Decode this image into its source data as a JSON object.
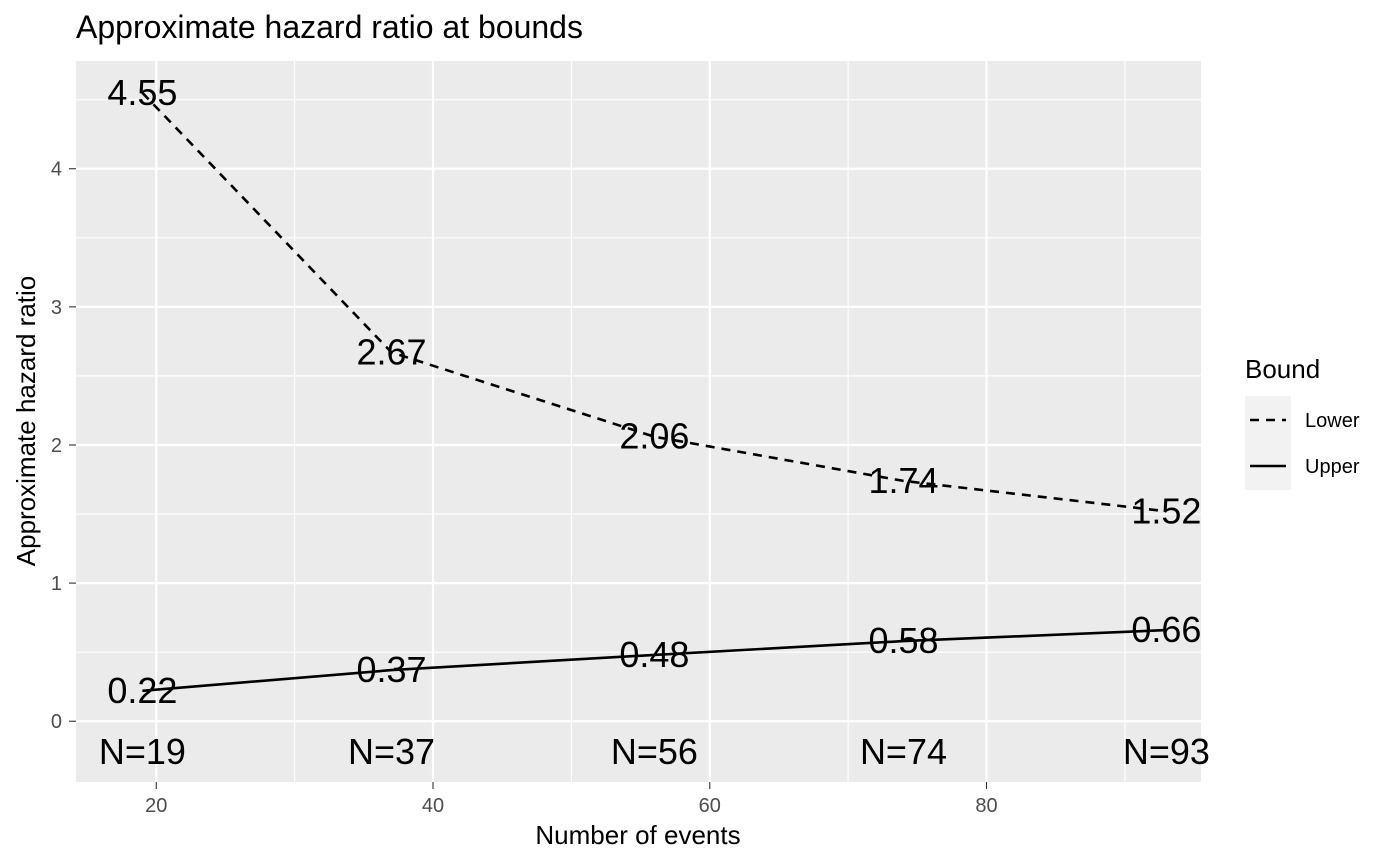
{
  "chart_data": {
    "type": "line",
    "title": "Approximate hazard ratio at bounds",
    "xlabel": "Number of events",
    "ylabel": "Approximate hazard ratio",
    "xlim": [
      14.2,
      95.5
    ],
    "ylim": [
      -0.44,
      4.78
    ],
    "x_ticks": [
      20,
      40,
      60,
      80
    ],
    "y_ticks": [
      0,
      1,
      2,
      3,
      4
    ],
    "grid": true,
    "x": [
      19,
      37,
      56,
      74,
      93
    ],
    "series": [
      {
        "name": "Lower",
        "linetype": "dashed",
        "values": [
          4.55,
          2.67,
          2.06,
          1.74,
          1.52
        ],
        "labels": [
          "4.55",
          "2.67",
          "2.06",
          "1.74",
          "1.52"
        ]
      },
      {
        "name": "Upper",
        "linetype": "solid",
        "values": [
          0.22,
          0.37,
          0.48,
          0.58,
          0.66
        ],
        "labels": [
          "0.22",
          "0.37",
          "0.48",
          "0.58",
          "0.66"
        ]
      }
    ],
    "n_labels": [
      "N=19",
      "N=37",
      "N=56",
      "N=74",
      "N=93"
    ],
    "legend": {
      "title": "Bound",
      "position": "right",
      "entries": [
        "Lower",
        "Upper"
      ]
    },
    "colors": {
      "panel_background": "#ebebeb",
      "grid_line": "#ffffff",
      "line": "#000000",
      "tick_label": "#4d4d4d"
    }
  }
}
